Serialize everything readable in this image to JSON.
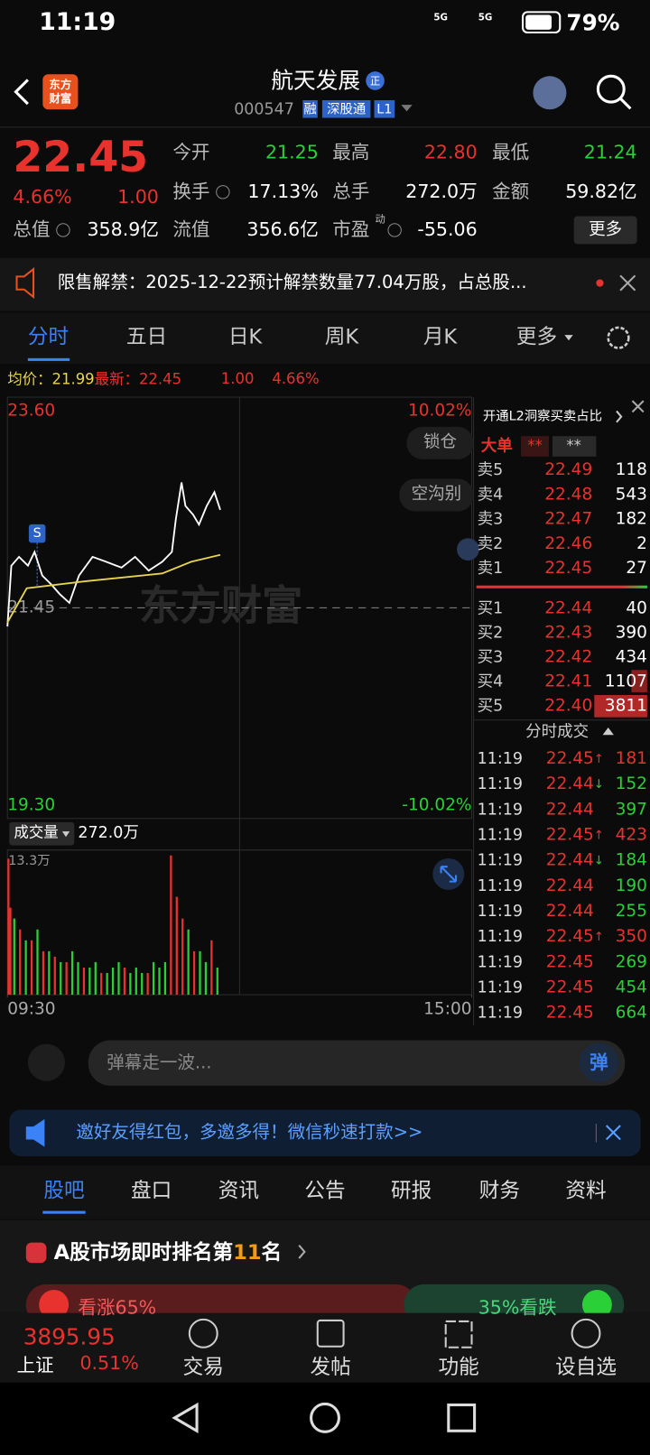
{
  "status_bar": {
    "time": "11:19",
    "network": [
      "5G",
      "5G"
    ],
    "battery": "79%"
  },
  "header": {
    "logo": [
      "东方",
      "财富"
    ],
    "title": "航天发展",
    "badge": "正",
    "code": "000547",
    "tags": [
      "融",
      "深股通",
      "L1"
    ]
  },
  "quote": {
    "price": "22.45",
    "change_pct": "4.66%",
    "change": "1.00",
    "fields": [
      {
        "label": "今开",
        "value": "21.25",
        "color": "#2bcf37"
      },
      {
        "label": "最高",
        "value": "22.80",
        "color": "#e8322e"
      },
      {
        "label": "最低",
        "value": "21.24",
        "color": "#2bcf37"
      },
      {
        "label": "换手",
        "value": "17.13%",
        "color": "#ffffff"
      },
      {
        "label": "总手",
        "value": "272.0万",
        "color": "#ffffff"
      },
      {
        "label": "金额",
        "value": "59.82亿",
        "color": "#ffffff"
      },
      {
        "label": "总值",
        "value": "358.9亿",
        "color": "#ffffff"
      },
      {
        "label": "流值",
        "value": "356.6亿",
        "color": "#ffffff"
      },
      {
        "label": "市盈",
        "value": "-55.06",
        "color": "#ffffff"
      }
    ],
    "pe_note": "动",
    "more": "更多"
  },
  "notice": {
    "text": "限售解禁：2025-12-22预计解禁数量77.04万股，占总股..."
  },
  "tabs": {
    "items": [
      "分时",
      "五日",
      "日K",
      "周K",
      "月K",
      "更多"
    ],
    "active": 0
  },
  "chart_data": [
    {
      "type": "line",
      "info": {
        "avg_label": "均价：",
        "avg": "21.99",
        "latest_label": "最新：",
        "latest": "22.45",
        "change": "1.00",
        "change_pct": "4.66%"
      },
      "xlim": [
        0,
        240
      ],
      "ylim": [
        19.3,
        23.6
      ],
      "yticks": [
        {
          "value": 19.3,
          "label": "19.30"
        },
        21.45,
        {
          "value": 23.6,
          "label": "23.60"
        }
      ],
      "y2lim": [
        -10.02,
        10.02
      ],
      "y2ticks": [
        {
          "value": -10.02,
          "label": "-10.02%"
        },
        {
          "value": 10.02,
          "label": "10.02%"
        }
      ],
      "series": [
        {
          "color": "#ffffff",
          "x": [
            0,
            2,
            6,
            10.6,
            14,
            18,
            22.6,
            27,
            32,
            37,
            44,
            51,
            59,
            66,
            73,
            80,
            85,
            87,
            90,
            92,
            96,
            99,
            103,
            107,
            110
          ],
          "values": [
            21.26,
            21.88,
            21.97,
            21.88,
            22.02,
            21.78,
            21.69,
            21.59,
            21.5,
            21.78,
            21.97,
            21.92,
            21.86,
            21.97,
            21.83,
            21.92,
            22.02,
            22.35,
            22.73,
            22.49,
            22.4,
            22.3,
            22.49,
            22.63,
            22.45
          ]
        },
        {
          "color": "#e8d44d",
          "x": [
            0,
            10,
            40,
            80,
            95,
            110
          ],
          "values": [
            21.3,
            21.65,
            21.72,
            21.8,
            21.92,
            21.99
          ]
        }
      ],
      "buttons": [
        "锁仓",
        "空沟别"
      ],
      "watermark": "东方财富",
      "marker": "S"
    },
    {
      "type": "bar",
      "label": "成交量",
      "total": "272.0万",
      "xlim": [
        0,
        240
      ],
      "xticks": [
        {
          "value": 0,
          "label": "09:30"
        },
        {
          "value": 240,
          "label": "15:00"
        }
      ],
      "ylim": [
        0,
        13.3
      ],
      "yticks": [
        {
          "value": 13.3,
          "label": "13.3万"
        }
      ],
      "series": [
        {
          "color": "#e8322e",
          "x": [
            0,
            1,
            6,
            12,
            18,
            24,
            30,
            39,
            48,
            60,
            72,
            84,
            87,
            90,
            96,
            105
          ],
          "values": [
            12.5,
            8,
            6,
            5,
            4,
            3.5,
            3,
            2.5,
            2,
            2.5,
            2,
            12.8,
            9,
            7,
            4,
            5
          ]
        },
        {
          "color": "#2bcf37",
          "x": [
            3,
            9,
            15,
            21,
            27,
            33,
            36,
            42,
            45,
            51,
            54,
            57,
            63,
            66,
            69,
            75,
            78,
            81,
            93,
            99,
            102,
            108
          ],
          "values": [
            7,
            5,
            6,
            4,
            3,
            4,
            3,
            2.5,
            3,
            2,
            2.5,
            3,
            2,
            2.5,
            2,
            3,
            2.5,
            3,
            6,
            4,
            3,
            2.5
          ]
        }
      ]
    }
  ],
  "order_book": {
    "header": "开通L2洞察买卖占比",
    "big_order": "大单",
    "masks": [
      "**",
      "**"
    ],
    "asks": [
      {
        "label": "卖5",
        "price": "22.49",
        "volume": "118"
      },
      {
        "label": "卖4",
        "price": "22.48",
        "volume": "543"
      },
      {
        "label": "卖3",
        "price": "22.47",
        "volume": "182"
      },
      {
        "label": "卖2",
        "price": "22.46",
        "volume": "2"
      },
      {
        "label": "卖1",
        "price": "22.45",
        "volume": "27"
      }
    ],
    "bids": [
      {
        "label": "买1",
        "price": "22.44",
        "volume": "40"
      },
      {
        "label": "买2",
        "price": "22.43",
        "volume": "390"
      },
      {
        "label": "买3",
        "price": "22.42",
        "volume": "434"
      },
      {
        "label": "买4",
        "price": "22.41",
        "volume": "1107"
      },
      {
        "label": "买5",
        "price": "22.40",
        "volume": "3811"
      }
    ],
    "trades_title": "分时成交",
    "trades": [
      {
        "time": "11:19",
        "price": "22.45",
        "arrow": "↑",
        "volume": "181",
        "color": "#e8322e"
      },
      {
        "time": "11:19",
        "price": "22.44",
        "arrow": "↓",
        "volume": "152",
        "color": "#2bcf37"
      },
      {
        "time": "11:19",
        "price": "22.44",
        "volume": "397",
        "color": "#2bcf37"
      },
      {
        "time": "11:19",
        "price": "22.45",
        "arrow": "↑",
        "volume": "423",
        "color": "#e8322e"
      },
      {
        "time": "11:19",
        "price": "22.44",
        "arrow": "↓",
        "volume": "184",
        "color": "#2bcf37"
      },
      {
        "time": "11:19",
        "price": "22.44",
        "volume": "190",
        "color": "#2bcf37"
      },
      {
        "time": "11:19",
        "price": "22.44",
        "volume": "255",
        "color": "#2bcf37"
      },
      {
        "time": "11:19",
        "price": "22.45",
        "arrow": "↑",
        "volume": "350",
        "color": "#e8322e"
      },
      {
        "time": "11:19",
        "price": "22.45",
        "volume": "269",
        "color": "#2bcf37"
      },
      {
        "time": "11:19",
        "price": "22.45",
        "volume": "454",
        "color": "#2bcf37"
      },
      {
        "time": "11:19",
        "price": "22.45",
        "volume": "664",
        "color": "#2bcf37"
      }
    ]
  },
  "danmaku": {
    "placeholder": "弹幕走一波...",
    "button": "弹"
  },
  "banner": {
    "text": "邀好友得红包，多邀多得！微信秒速打款>>"
  },
  "sections": {
    "items": [
      "股吧",
      "盘口",
      "资讯",
      "公告",
      "研报",
      "财务",
      "资料"
    ],
    "active": 0
  },
  "ranking": {
    "prefix": "A股市场即时排名第",
    "rank": "11",
    "suffix": "名",
    "bull_label": "看涨",
    "bull": "65%",
    "bear": "35%",
    "bear_label": "看跌"
  },
  "bottom_nav": {
    "index_value": "3895.95",
    "index_name": "上证",
    "index_change": "0.51%",
    "items": [
      "交易",
      "发帖",
      "功能",
      "设自选"
    ]
  }
}
